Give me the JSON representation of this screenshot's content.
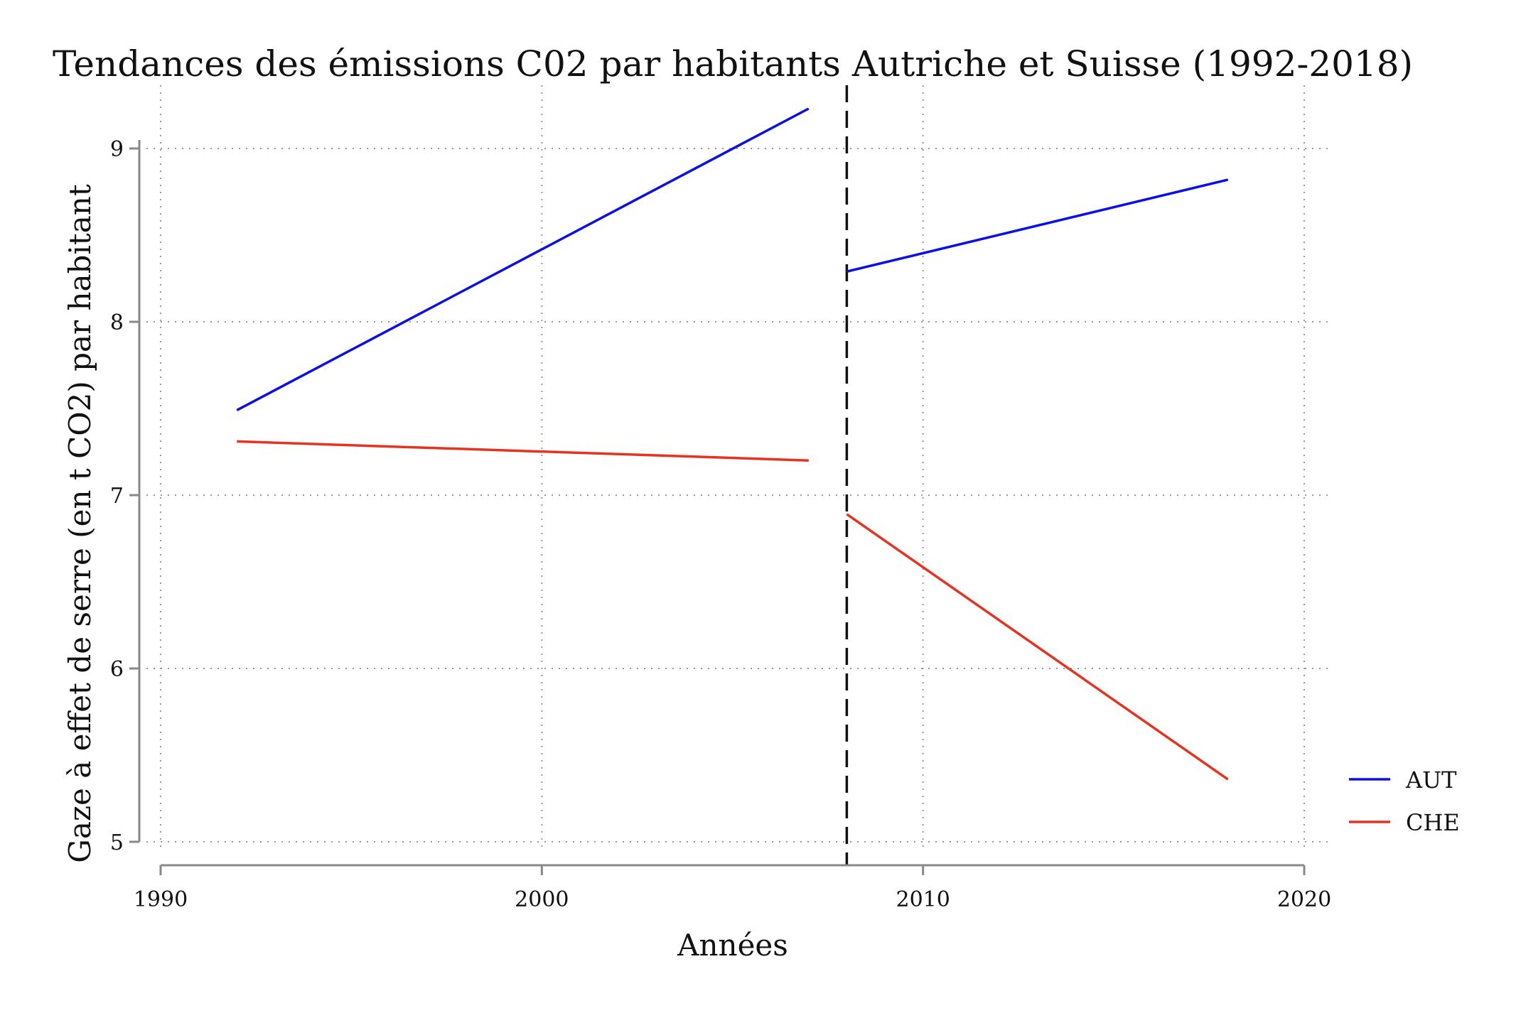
{
  "chart_data": {
    "type": "line",
    "title": "Tendances des émissions C02 par habitants Autriche et Suisse (1992-2018)",
    "xlabel": "Années",
    "ylabel": "Gaze à effet de serre (en t CO2) par habitant",
    "xlim": [
      1990,
      2020
    ],
    "ylim": [
      5,
      9.3
    ],
    "xticks": [
      "1990",
      "2000",
      "2010",
      "2020"
    ],
    "yticks": [
      "5",
      "6",
      "7",
      "8",
      "9"
    ],
    "grid": true,
    "legend_position": "right-bottom",
    "vertical_reference_line": {
      "x": 2008,
      "style": "dashed",
      "color": "#111111"
    },
    "series": [
      {
        "name": "AUT",
        "color": "#0a10e6",
        "segments": [
          {
            "x": [
              1992,
              2007
            ],
            "y": [
              7.49,
              9.23
            ]
          },
          {
            "x": [
              2008,
              2018
            ],
            "y": [
              8.29,
              8.82
            ]
          }
        ]
      },
      {
        "name": "CHE",
        "color": "#e8321f",
        "segments": [
          {
            "x": [
              1992,
              2007
            ],
            "y": [
              7.31,
              7.2
            ]
          },
          {
            "x": [
              2008,
              2018
            ],
            "y": [
              6.89,
              5.36
            ]
          }
        ]
      }
    ]
  }
}
